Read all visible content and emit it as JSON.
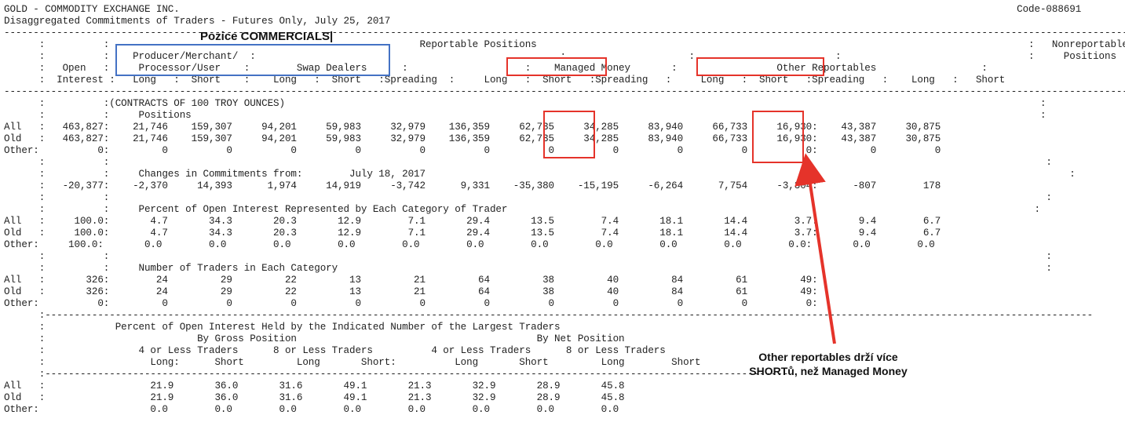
{
  "report": {
    "lines": [
      "GOLD - COMMODITY EXCHANGE INC.                                                                                                                                               Code-088691",
      "Disaggregated Commitments of Traders - Futures Only, July 25, 2017",
      "-----------------------------------------------------------------------------------------------------------------------------------------------------------------------------------------------------",
      "      :          :                                                     Reportable Positions                                                                                    :   Nonreportable",
      "      :          :    Producer/Merchant/  :                                                    :                     :                        :                                :     Positions",
      "      :   Open   :     Processor/User    :        Swap Dealers      :                    :    Managed Money       :                 Other Reportables                  :",
      "      :  Interest :   Long   :  Short    :    Long   :  Short   :Spreading  :     Long   :  Short   :Spreading   :     Long   :  Short   :Spreading   :    Long   :   Short",
      "-----------------------------------------------------------------------------------------------------------------------------------------------------------------------------------------------------",
      "      :          :(CONTRACTS OF 100 TROY OUNCES)                                                                                                                                 :",
      "      :          :     Positions                                                                                                                                                 :",
      "All   :   463,827:    21,746    159,307     94,201     59,983     32,979    136,359     62,735     34,285     83,940     66,733     16,930:    43,387     30,875",
      "Old   :   463,827:    21,746    159,307     94,201     59,983     32,979    136,359     62,735     34,285     83,940     66,733     16,930:    43,387     30,875",
      "Other:          0:         0          0          0          0          0          0          0          0          0          0          0:         0          0",
      "      :          :                                                                                                                                                                :",
      "      :          :     Changes in Commitments from:        July 18, 2017                                                                                                              :",
      "      :   -20,377:    -2,370     14,393      1,974     14,919     -3,742      9,331    -35,380    -15,195     -6,264      7,754     -3,304:      -807        178",
      "      :          :                                                                                                                                                                :",
      "      :          :     Percent of Open Interest Represented by Each Category of Trader                                                                                          :",
      "All   :     100.0:       4.7       34.3       20.3       12.9        7.1       29.4       13.5        7.4       18.1       14.4        3.7:       9.4        6.7",
      "Old   :     100.0:       4.7       34.3       20.3       12.9        7.1       29.4       13.5        7.4       18.1       14.4        3.7:       9.4        6.7",
      "Other:     100.0:       0.0        0.0        0.0        0.0        0.0        0.0        0.0        0.0        0.0        0.0        0.0:       0.0        0.0",
      "      :          :                                                                                                                                                                :",
      "      :          :     Number of Traders in Each Category                                                                                                                         :",
      "All   :       326:        24         29         22         13         21         64         38         40         84         61         49:",
      "Old   :       326:        24         29         22         13         21         64         38         40         84         61         49:",
      "Other:          0:         0          0          0          0          0          0          0          0          0          0          0:",
      "      :-----------------------------------------------------------------------------------------------------------------------------------------------------------------------------------",
      "      :            Percent of Open Interest Held by the Indicated Number of the Largest Traders",
      "      :                          By Gross Position                                         By Net Position",
      "      :                4 or Less Traders      8 or Less Traders          4 or Less Traders      8 or Less Traders",
      "      :                  Long:      Short         Long       Short:          Long       Short         Long        Short",
      "      :-------------------------------------------------------------------------------------------------------------------------------",
      "All   :                  21.9       36.0       31.6       49.1       21.3       32.9       28.9       45.8",
      "Old   :                  21.9       36.0       31.6       49.1       21.3       32.9       28.9       45.8",
      "Other:                   0.0        0.0        0.0        0.0        0.0        0.0        0.0        0.0"
    ]
  },
  "annotations": {
    "commercials_heading": "Pozice COMMERCIALS|",
    "callout_text": "Other reportables drží více\nSHORTů, než Managed Money",
    "colors": {
      "blue_box": "#4472c4",
      "red_box": "#e5332a",
      "arrow": "#e5332a"
    }
  }
}
